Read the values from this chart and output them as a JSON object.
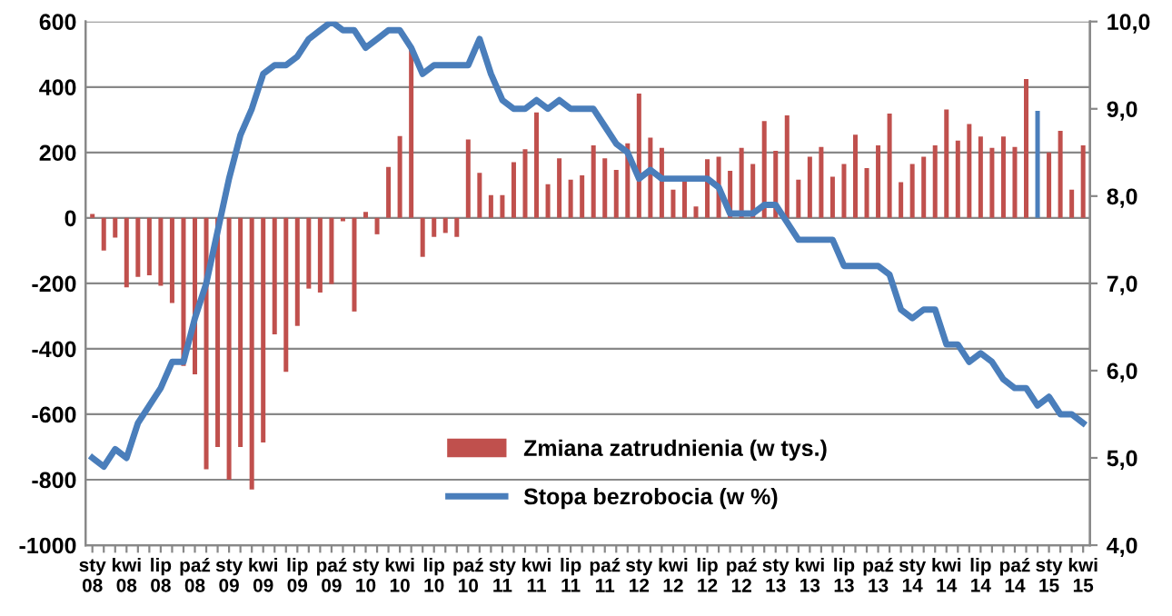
{
  "chart_data": {
    "type": "bar",
    "categories": [
      "sty\n08",
      null,
      null,
      "kwi\n08",
      null,
      null,
      "lip\n08",
      null,
      null,
      "paź\n08",
      null,
      null,
      "sty\n09",
      null,
      null,
      "kwi\n09",
      null,
      null,
      "lip\n09",
      null,
      null,
      "paź\n09",
      null,
      null,
      "sty\n10",
      null,
      null,
      "kwi\n10",
      null,
      null,
      "lip\n10",
      null,
      null,
      "paź\n10",
      null,
      null,
      "sty\n11",
      null,
      null,
      "kwi\n11",
      null,
      null,
      "lip\n11",
      null,
      null,
      "paź\n11",
      null,
      null,
      "sty\n12",
      null,
      null,
      "kwi\n12",
      null,
      null,
      "lip\n12",
      null,
      null,
      "paź\n12",
      null,
      null,
      "sty\n13",
      null,
      null,
      "kwi\n13",
      null,
      null,
      "lip\n13",
      null,
      null,
      "paź\n13",
      null,
      null,
      "sty\n14",
      null,
      null,
      "kwi\n14",
      null,
      null,
      "lip\n14",
      null,
      null,
      "paź\n14",
      null,
      null,
      "sty\n15",
      null,
      null,
      "kwi\n15"
    ],
    "series": [
      {
        "name": "Zmiana zatrudnienia (w tys.)",
        "color": "#c0504d",
        "colors": [
          "#c0504d",
          "#c0504d",
          "#c0504d",
          "#c0504d",
          "#c0504d",
          "#c0504d",
          "#c0504d",
          "#c0504d",
          "#c0504d",
          "#c0504d",
          "#c0504d",
          "#c0504d",
          "#c0504d",
          "#c0504d",
          "#c0504d",
          "#c0504d",
          "#c0504d",
          "#c0504d",
          "#c0504d",
          "#c0504d",
          "#c0504d",
          "#c0504d",
          "#c0504d",
          "#c0504d",
          "#c0504d",
          "#c0504d",
          "#c0504d",
          "#c0504d",
          "#c0504d",
          "#c0504d",
          "#c0504d",
          "#c0504d",
          "#c0504d",
          "#c0504d",
          "#c0504d",
          "#c0504d",
          "#c0504d",
          "#c0504d",
          "#c0504d",
          "#c0504d",
          "#c0504d",
          "#c0504d",
          "#c0504d",
          "#c0504d",
          "#c0504d",
          "#c0504d",
          "#c0504d",
          "#c0504d",
          "#c0504d",
          "#c0504d",
          "#c0504d",
          "#c0504d",
          "#c0504d",
          "#c0504d",
          "#c0504d",
          "#c0504d",
          "#c0504d",
          "#c0504d",
          "#c0504d",
          "#c0504d",
          "#c0504d",
          "#c0504d",
          "#c0504d",
          "#c0504d",
          "#c0504d",
          "#c0504d",
          "#c0504d",
          "#c0504d",
          "#c0504d",
          "#c0504d",
          "#c0504d",
          "#c0504d",
          "#c0504d",
          "#c0504d",
          "#c0504d",
          "#c0504d",
          "#c0504d",
          "#c0504d",
          "#c0504d",
          "#c0504d",
          "#c0504d",
          "#c0504d",
          "#c0504d",
          "#4a7ebb",
          "#c0504d",
          "#c0504d",
          "#c0504d",
          "#c0504d"
        ],
        "values": [
          12,
          -100,
          -60,
          -212,
          -180,
          -175,
          -207,
          -260,
          -452,
          -478,
          -768,
          -700,
          -800,
          -700,
          -830,
          -686,
          -356,
          -470,
          -330,
          -216,
          -228,
          -202,
          -10,
          -286,
          18,
          -50,
          156,
          250,
          515,
          -119,
          -58,
          -46,
          -58,
          240,
          138,
          70,
          70,
          170,
          210,
          322,
          103,
          182,
          117,
          130,
          222,
          182,
          147,
          228,
          380,
          245,
          214,
          86,
          112,
          35,
          179,
          187,
          144,
          214,
          165,
          296,
          205,
          313,
          117,
          187,
          217,
          126,
          165,
          254,
          152,
          222,
          319,
          109,
          165,
          187,
          222,
          331,
          236,
          287,
          249,
          214,
          249,
          217,
          424,
          327,
          200,
          266,
          86,
          222
        ]
      },
      {
        "name": "Stopa bezrobocia (w %)",
        "type": "line",
        "axis": "y2",
        "color": "#4a7ebb",
        "values": [
          5.0,
          4.9,
          5.1,
          5.0,
          5.4,
          5.6,
          5.8,
          6.1,
          6.1,
          6.6,
          7.0,
          7.6,
          8.2,
          8.7,
          9.0,
          9.4,
          9.5,
          9.5,
          9.6,
          9.8,
          9.9,
          10.0,
          9.9,
          9.9,
          9.7,
          9.8,
          9.9,
          9.9,
          9.7,
          9.4,
          9.5,
          9.5,
          9.5,
          9.5,
          9.8,
          9.4,
          9.1,
          9.0,
          9.0,
          9.1,
          9.0,
          9.1,
          9.0,
          9.0,
          9.0,
          8.8,
          8.6,
          8.5,
          8.2,
          8.3,
          8.2,
          8.2,
          8.2,
          8.2,
          8.2,
          8.1,
          7.8,
          7.8,
          7.8,
          7.9,
          7.9,
          7.7,
          7.5,
          7.5,
          7.5,
          7.5,
          7.2,
          7.2,
          7.2,
          7.2,
          7.1,
          6.7,
          6.6,
          6.7,
          6.7,
          6.3,
          6.3,
          6.1,
          6.2,
          6.1,
          5.9,
          5.8,
          5.8,
          5.6,
          5.7,
          5.5,
          5.5,
          5.4
        ]
      }
    ],
    "ylim": [
      -1000,
      600
    ],
    "yticks": [
      -1000,
      -800,
      -600,
      -400,
      -200,
      0,
      200,
      400,
      600
    ],
    "y2lim": [
      4,
      10
    ],
    "y2ticks": [
      {
        "value": 4,
        "label": "4,0"
      },
      {
        "value": 5,
        "label": "5,0"
      },
      {
        "value": 6,
        "label": "6,0"
      },
      {
        "value": 7,
        "label": "7,0"
      },
      {
        "value": 8,
        "label": "8,0"
      },
      {
        "value": 9,
        "label": "9,0"
      },
      {
        "value": 10,
        "label": "10,0"
      }
    ],
    "grid": "y",
    "legend": "bottom"
  }
}
